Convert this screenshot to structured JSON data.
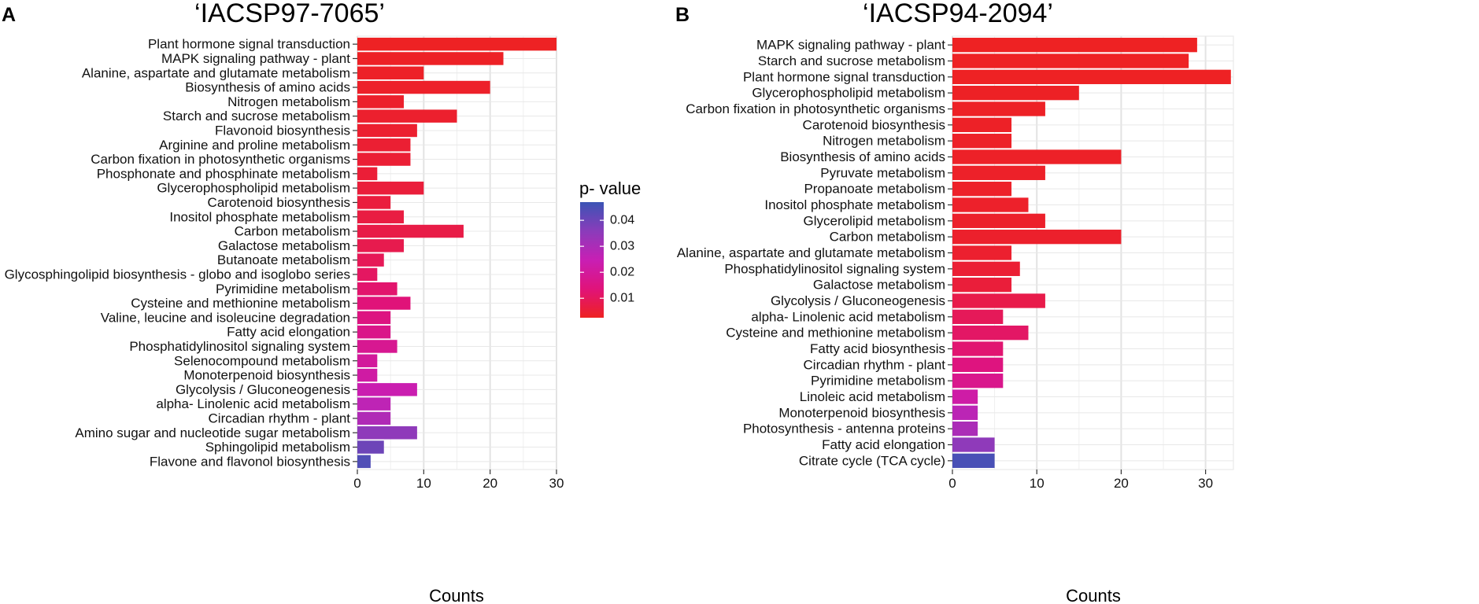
{
  "colorbar": {
    "title": "p- value",
    "min": 0.0025,
    "max": 0.047,
    "ticks": [
      0.01,
      0.02,
      0.03,
      0.04
    ],
    "tick_labels": [
      "0.01",
      "0.02",
      "0.03",
      "0.04"
    ],
    "colors": [
      "#ee2222",
      "#e0137a",
      "#c81fb4",
      "#8a3cba",
      "#3b54b5"
    ]
  },
  "chart_data": [
    {
      "panel_label": "A",
      "type": "bar",
      "orientation": "horizontal",
      "title": "‘IACSP97-7065’",
      "xlabel": "Counts",
      "ylabel": "",
      "xlim": [
        0,
        30
      ],
      "xticks": [
        0,
        10,
        20,
        30
      ],
      "xtick_labels": [
        "0",
        "10",
        "20",
        "30"
      ],
      "categories": [
        "Plant hormone signal transduction",
        "MAPK signaling pathway -  plant",
        "Alanine, aspartate and glutamate metabolism",
        "Biosynthesis of amino acids",
        "Nitrogen metabolism",
        "Starch and sucrose metabolism",
        "Flavonoid biosynthesis",
        "Arginine and proline metabolism",
        "Carbon fixation in photosynthetic organisms",
        "Phosphonate and phosphinate metabolism",
        "Glycerophospholipid metabolism",
        "Carotenoid biosynthesis",
        "Inositol phosphate metabolism",
        "Carbon metabolism",
        "Galactose metabolism",
        "Butanoate metabolism",
        "Glycosphingolipid biosynthesis -  globo and isoglobo series",
        "Pyrimidine metabolism",
        "Cysteine and methionine metabolism",
        "Valine, leucine and isoleucine degradation",
        "Fatty acid elongation",
        "Phosphatidylinositol signaling system",
        "Selenocompound metabolism",
        "Monoterpenoid biosynthesis",
        "Glycolysis / Gluconeogenesis",
        "alpha- Linolenic acid metabolism",
        "Circadian rhythm -  plant",
        "Amino sugar and nucleotide sugar metabolism",
        "Sphingolipid metabolism",
        "Flavone and flavonol biosynthesis"
      ],
      "values": [
        30,
        22,
        10,
        20,
        7,
        15,
        9,
        8,
        8,
        3,
        10,
        5,
        7,
        16,
        7,
        4,
        3,
        6,
        8,
        5,
        5,
        6,
        3,
        3,
        9,
        5,
        5,
        9,
        4,
        2
      ],
      "p_values": [
        0.0028,
        0.003,
        0.0032,
        0.0035,
        0.0038,
        0.004,
        0.0043,
        0.0046,
        0.0049,
        0.0052,
        0.0056,
        0.006,
        0.0065,
        0.0072,
        0.008,
        0.0092,
        0.0105,
        0.012,
        0.0135,
        0.015,
        0.0165,
        0.018,
        0.02,
        0.0215,
        0.024,
        0.0265,
        0.029,
        0.035,
        0.04,
        0.044
      ]
    },
    {
      "panel_label": "B",
      "type": "bar",
      "orientation": "horizontal",
      "title": "‘IACSP94-2094’",
      "xlabel": "Counts",
      "ylabel": "",
      "xlim": [
        0,
        33.3
      ],
      "xticks": [
        0,
        10,
        20,
        30
      ],
      "xtick_labels": [
        "0",
        "10",
        "20",
        "30"
      ],
      "categories": [
        "MAPK signaling pathway -  plant",
        "Starch and sucrose metabolism",
        "Plant hormone signal transduction",
        "Glycerophospholipid metabolism",
        "Carbon fixation in photosynthetic organisms",
        "Carotenoid biosynthesis",
        "Nitrogen metabolism",
        "Biosynthesis of amino acids",
        "Pyruvate metabolism",
        "Propanoate metabolism",
        "Inositol phosphate metabolism",
        "Glycerolipid metabolism",
        "Carbon metabolism",
        "Alanine, aspartate and glutamate metabolism",
        "Phosphatidylinositol signaling system",
        "Galactose metabolism",
        "Glycolysis / Gluconeogenesis",
        "alpha- Linolenic acid metabolism",
        "Cysteine and methionine metabolism",
        "Fatty acid biosynthesis",
        "Circadian rhythm -  plant",
        "Pyrimidine metabolism",
        "Linoleic acid metabolism",
        "Monoterpenoid biosynthesis",
        "Photosynthesis -  antenna proteins",
        "Fatty acid elongation",
        "Citrate cycle (TCA cycle)"
      ],
      "values": [
        29,
        28,
        33,
        15,
        11,
        7,
        7,
        20,
        11,
        7,
        9,
        11,
        20,
        7,
        8,
        7,
        11,
        6,
        9,
        6,
        6,
        6,
        3,
        3,
        3,
        5,
        5
      ],
      "p_values": [
        0.0026,
        0.0027,
        0.0028,
        0.0029,
        0.003,
        0.0031,
        0.0032,
        0.0033,
        0.0034,
        0.0035,
        0.0036,
        0.0037,
        0.0038,
        0.0042,
        0.0048,
        0.0055,
        0.0075,
        0.0095,
        0.011,
        0.0125,
        0.0145,
        0.017,
        0.022,
        0.027,
        0.03,
        0.035,
        0.045
      ]
    }
  ]
}
